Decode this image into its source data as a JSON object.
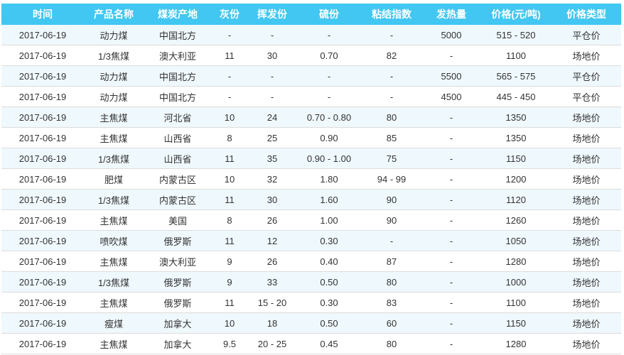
{
  "colors": {
    "header_bg": "#41c7f1",
    "header_text": "#ffffff",
    "row_alt_bg": "#eff8fd",
    "row_bg": "#ffffff",
    "border_color": "#dcdcdc",
    "text_color": "#333333"
  },
  "table": {
    "column_keys": [
      "time",
      "product-name",
      "coal-origin",
      "ash",
      "volatile",
      "sulfur",
      "bond-index",
      "calorific-value",
      "price",
      "price-type"
    ],
    "columns": [
      {
        "label": "时间"
      },
      {
        "label": "产品名称"
      },
      {
        "label": "煤炭产地"
      },
      {
        "label": "灰份"
      },
      {
        "label": "挥发份"
      },
      {
        "label": "硫份"
      },
      {
        "label": "粘结指数"
      },
      {
        "label": "发热量"
      },
      {
        "label": "价格(元/吨)"
      },
      {
        "label": "价格类型"
      }
    ],
    "rows": [
      [
        "2017-06-19",
        "动力煤",
        "中国北方",
        "-",
        "-",
        "-",
        "-",
        "5000",
        "515 - 520",
        "平仓价"
      ],
      [
        "2017-06-19",
        "1/3焦煤",
        "澳大利亚",
        "11",
        "30",
        "0.70",
        "82",
        "-",
        "1100",
        "场地价"
      ],
      [
        "2017-06-19",
        "动力煤",
        "中国北方",
        "-",
        "-",
        "-",
        "-",
        "5500",
        "565 - 575",
        "平仓价"
      ],
      [
        "2017-06-19",
        "动力煤",
        "中国北方",
        "-",
        "-",
        "-",
        "-",
        "4500",
        "445 - 450",
        "平仓价"
      ],
      [
        "2017-06-19",
        "主焦煤",
        "河北省",
        "10",
        "24",
        "0.70 - 0.80",
        "80",
        "-",
        "1350",
        "场地价"
      ],
      [
        "2017-06-19",
        "主焦煤",
        "山西省",
        "8",
        "25",
        "0.90",
        "85",
        "-",
        "1350",
        "场地价"
      ],
      [
        "2017-06-19",
        "1/3焦煤",
        "山西省",
        "11",
        "35",
        "0.90 - 1.00",
        "75",
        "-",
        "1150",
        "场地价"
      ],
      [
        "2017-06-19",
        "肥煤",
        "内蒙古区",
        "10",
        "32",
        "1.80",
        "94 - 99",
        "-",
        "1200",
        "场地价"
      ],
      [
        "2017-06-19",
        "1/3焦煤",
        "内蒙古区",
        "11",
        "30",
        "1.60",
        "90",
        "-",
        "1120",
        "场地价"
      ],
      [
        "2017-06-19",
        "主焦煤",
        "美国",
        "8",
        "26",
        "1.00",
        "90",
        "-",
        "1260",
        "场地价"
      ],
      [
        "2017-06-19",
        "喷吹煤",
        "俄罗斯",
        "11",
        "12",
        "0.30",
        "-",
        "-",
        "1050",
        "场地价"
      ],
      [
        "2017-06-19",
        "主焦煤",
        "澳大利亚",
        "9",
        "26",
        "0.40",
        "87",
        "-",
        "1280",
        "场地价"
      ],
      [
        "2017-06-19",
        "1/3焦煤",
        "俄罗斯",
        "9",
        "33",
        "0.50",
        "80",
        "-",
        "1000",
        "场地价"
      ],
      [
        "2017-06-19",
        "主焦煤",
        "俄罗斯",
        "11",
        "15 - 20",
        "0.30",
        "83",
        "-",
        "1100",
        "场地价"
      ],
      [
        "2017-06-19",
        "瘦煤",
        "加拿大",
        "10",
        "18",
        "0.50",
        "60",
        "-",
        "1150",
        "场地价"
      ],
      [
        "2017-06-19",
        "主焦煤",
        "加拿大",
        "9.5",
        "20 - 25",
        "0.45",
        "80",
        "-",
        "1280",
        "场地价"
      ]
    ]
  }
}
